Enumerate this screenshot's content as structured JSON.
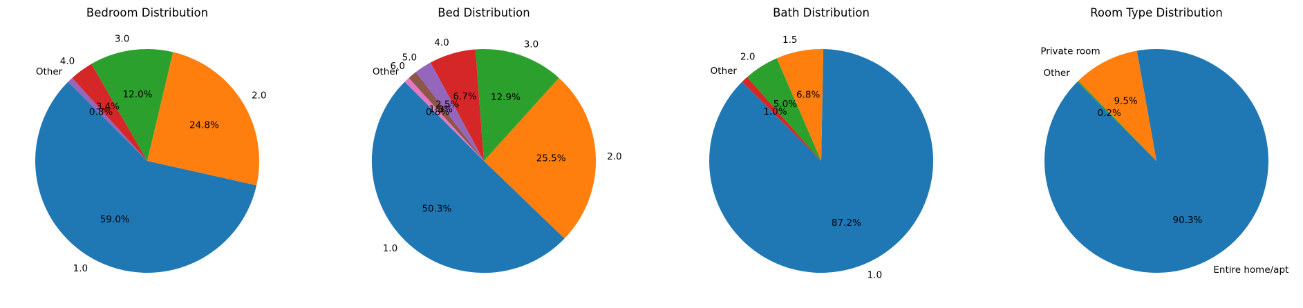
{
  "chart_data": [
    {
      "type": "pie",
      "title": "Bedroom Distribution",
      "start_angle": 135,
      "labels": [
        "1.0",
        "2.0",
        "3.0",
        "4.0",
        "Other"
      ],
      "percent_labels": [
        "59.0%",
        "24.8%",
        "12.0%",
        "3.4%",
        "0.8%"
      ],
      "values": [
        59.0,
        24.8,
        12.0,
        3.4,
        0.8
      ],
      "colors": [
        "#1f77b4",
        "#ff7f0e",
        "#2ca02c",
        "#d62728",
        "#9467bd"
      ]
    },
    {
      "type": "pie",
      "title": "Bed Distribution",
      "start_angle": 135,
      "labels": [
        "1.0",
        "2.0",
        "3.0",
        "4.0",
        "5.0",
        "6.0",
        "Other"
      ],
      "percent_labels": [
        "50.3%",
        "25.5%",
        "12.9%",
        "6.7%",
        "2.5%",
        "1.3%",
        "0.8%"
      ],
      "values": [
        50.3,
        25.5,
        12.9,
        6.7,
        2.5,
        1.3,
        0.8
      ],
      "colors": [
        "#1f77b4",
        "#ff7f0e",
        "#2ca02c",
        "#d62728",
        "#9467bd",
        "#8c564b",
        "#e377c2"
      ]
    },
    {
      "type": "pie",
      "title": "Bath Distribution",
      "start_angle": 135,
      "labels": [
        "1.0",
        "1.5",
        "2.0",
        "Other"
      ],
      "percent_labels": [
        "87.2%",
        "6.8%",
        "5.0%",
        "1.0%"
      ],
      "values": [
        87.2,
        6.8,
        5.0,
        1.0
      ],
      "colors": [
        "#1f77b4",
        "#ff7f0e",
        "#2ca02c",
        "#d62728"
      ]
    },
    {
      "type": "pie",
      "title": "Room Type Distribution",
      "start_angle": 135,
      "labels": [
        "Entire home/apt",
        "Private room",
        "Other"
      ],
      "percent_labels": [
        "90.3%",
        "9.5%",
        "0.2%"
      ],
      "values": [
        90.3,
        9.5,
        0.2
      ],
      "colors": [
        "#1f77b4",
        "#ff7f0e",
        "#2ca02c"
      ]
    }
  ]
}
